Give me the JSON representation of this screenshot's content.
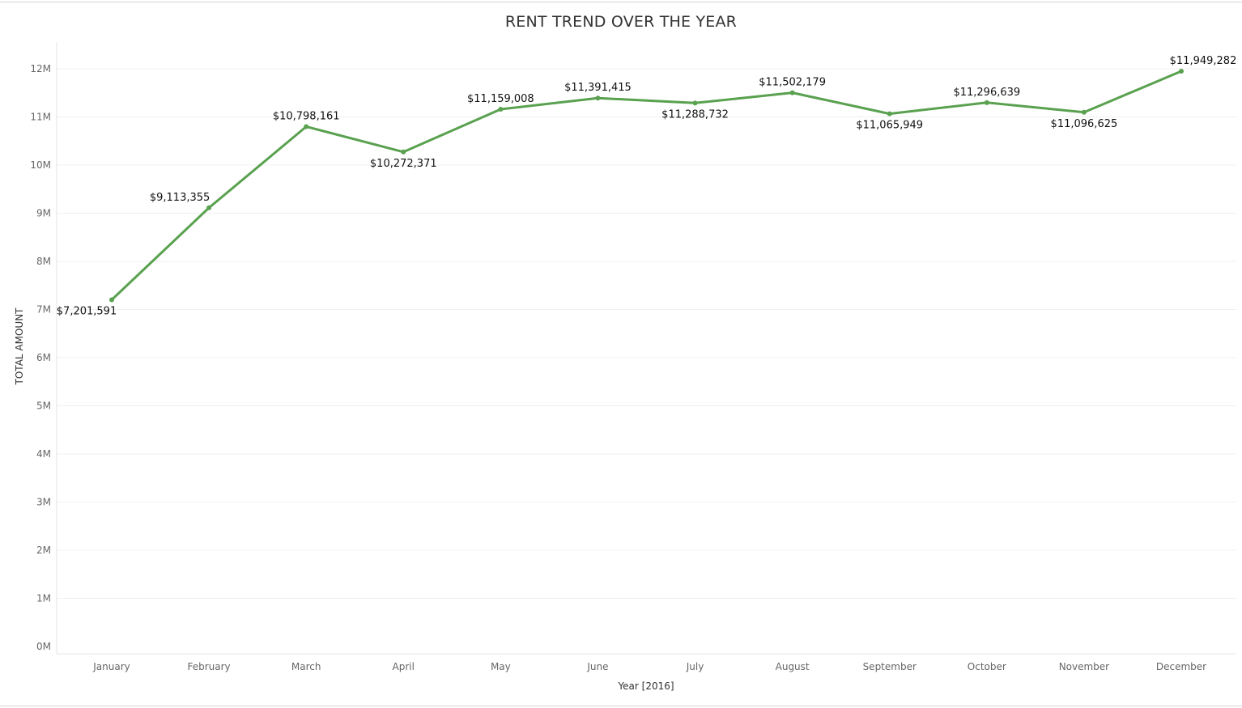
{
  "chart_data": {
    "type": "line",
    "title": "RENT TREND OVER THE YEAR",
    "xlabel": "Year [2016]",
    "ylabel": "TOTAL AMOUNT",
    "categories": [
      "January",
      "February",
      "March",
      "April",
      "May",
      "June",
      "July",
      "August",
      "September",
      "October",
      "November",
      "December"
    ],
    "series": [
      {
        "values": [
          7201591,
          9113355,
          10798161,
          10272371,
          11159008,
          11391415,
          11288732,
          11502179,
          11065949,
          11296639,
          11096625,
          11949282
        ],
        "labels": [
          "$7,201,591",
          "$9,113,355",
          "$10,798,161",
          "$10,272,371",
          "$11,159,008",
          "$11,391,415",
          "$11,288,732",
          "$11,502,179",
          "$11,065,949",
          "$11,296,639",
          "$11,096,625",
          "$11,949,282"
        ],
        "label_positions": [
          "below",
          "above",
          "above",
          "below",
          "above",
          "above",
          "below",
          "above",
          "below",
          "above",
          "below",
          "above"
        ],
        "color": "#59a14f"
      }
    ],
    "ylim": [
      0,
      12600000
    ],
    "yticks": [
      0,
      1000000,
      2000000,
      3000000,
      4000000,
      5000000,
      6000000,
      7000000,
      8000000,
      9000000,
      10000000,
      11000000,
      12000000
    ],
    "ytick_labels": [
      "0M",
      "1M",
      "2M",
      "3M",
      "4M",
      "5M",
      "6M",
      "7M",
      "8M",
      "9M",
      "10M",
      "11M",
      "12M"
    ],
    "grid": true,
    "gridline_color": "#f0f0f0"
  }
}
